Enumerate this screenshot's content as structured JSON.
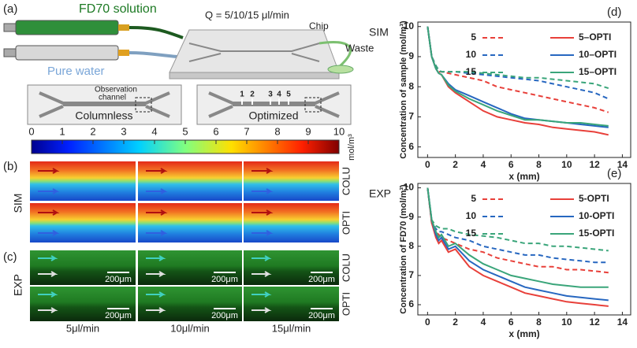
{
  "panel_a": {
    "label": "(a)",
    "syringe_1": "FD70 solution",
    "syringe_2": "Pure water",
    "flow": "Q = 5/10/15 μl/min",
    "chip": "Chip",
    "waste": "Waste",
    "observation": [
      "Observation",
      "channel"
    ],
    "columnless": "Columnless",
    "optimized": "Optimized",
    "column_numbers": [
      "1",
      "2",
      "3",
      "4",
      "5"
    ]
  },
  "panel_b": {
    "label": "(b)",
    "colorbar_ticks": [
      "0",
      "1",
      "2",
      "3",
      "4",
      "5",
      "6",
      "7",
      "8",
      "9",
      "10"
    ],
    "colorbar_unit": "mol/m³",
    "side_label": "SIM",
    "rows": [
      "COLU",
      "OPTI"
    ]
  },
  "panel_c": {
    "label": "(c)",
    "side_label": "EXP",
    "rows": [
      "COLU",
      "OPTI"
    ],
    "scale_bar": "200μm",
    "columns": [
      "5μl/min",
      "10μl/min",
      "15μl/min"
    ]
  },
  "chart_data": [
    {
      "type": "line",
      "panel": "(d)",
      "annotation": "SIM",
      "x_label": "x (mm)",
      "y_label": "Concentration of sample (mol/m³)",
      "xlim": [
        -0.7,
        14.6
      ],
      "xticks": [
        0,
        2,
        4,
        6,
        8,
        10,
        12,
        14
      ],
      "ylim": [
        5.65,
        10.15
      ],
      "yticks": [
        6,
        7,
        8,
        9,
        10
      ],
      "x": [
        0,
        0.3,
        0.6,
        0.8,
        1,
        1.5,
        2,
        3,
        4,
        5,
        6,
        7,
        8,
        9,
        10,
        11,
        12,
        13
      ],
      "series": [
        {
          "name": "5",
          "color": "#e8403a",
          "line_style": "dashed",
          "values": [
            10,
            9.0,
            8.7,
            8.5,
            8.5,
            8.45,
            8.4,
            8.3,
            8.2,
            8.0,
            7.9,
            7.8,
            7.7,
            7.6,
            7.5,
            7.4,
            7.3,
            7.15
          ]
        },
        {
          "name": "10",
          "color": "#2767c0",
          "line_style": "dashed",
          "values": [
            10,
            9.0,
            8.7,
            8.55,
            8.5,
            8.5,
            8.5,
            8.45,
            8.4,
            8.35,
            8.3,
            8.25,
            8.2,
            8.1,
            8.0,
            7.9,
            7.8,
            7.6
          ]
        },
        {
          "name": "15",
          "color": "#3aa57a",
          "line_style": "dashed",
          "values": [
            10,
            9.0,
            8.7,
            8.55,
            8.5,
            8.5,
            8.5,
            8.5,
            8.45,
            8.4,
            8.35,
            8.3,
            8.3,
            8.25,
            8.2,
            8.15,
            8.1,
            7.95
          ]
        },
        {
          "name": "5–OPTI",
          "color": "#e8403a",
          "line_style": "solid",
          "values": [
            10,
            9.0,
            8.6,
            8.45,
            8.4,
            8.0,
            7.8,
            7.5,
            7.2,
            7.0,
            6.9,
            6.8,
            6.75,
            6.65,
            6.6,
            6.55,
            6.5,
            6.4
          ]
        },
        {
          "name": "10–OPTI",
          "color": "#2767c0",
          "line_style": "solid",
          "values": [
            10,
            9.0,
            8.6,
            8.45,
            8.4,
            8.1,
            7.9,
            7.7,
            7.5,
            7.3,
            7.1,
            6.95,
            6.9,
            6.85,
            6.8,
            6.75,
            6.7,
            6.65
          ]
        },
        {
          "name": "15–OPTI",
          "color": "#3aa57a",
          "line_style": "solid",
          "values": [
            10,
            9.0,
            8.6,
            8.45,
            8.4,
            8.05,
            7.85,
            7.6,
            7.4,
            7.2,
            7.05,
            6.9,
            6.9,
            6.85,
            6.8,
            6.8,
            6.75,
            6.7
          ]
        }
      ]
    },
    {
      "type": "line",
      "panel": "(e)",
      "annotation": "EXP",
      "x_label": "x (mm)",
      "y_label": "Concentration of FD70 (mol/m³)",
      "xlim": [
        -0.7,
        14.6
      ],
      "xticks": [
        0,
        2,
        4,
        6,
        8,
        10,
        12,
        14
      ],
      "ylim": [
        5.65,
        10.15
      ],
      "yticks": [
        6,
        7,
        8,
        9,
        10
      ],
      "x": [
        0,
        0.3,
        0.6,
        0.8,
        1,
        1.5,
        2,
        3,
        4,
        5,
        6,
        7,
        8,
        9,
        10,
        11,
        12,
        13
      ],
      "series": [
        {
          "name": "5",
          "color": "#e8403a",
          "line_style": "dashed",
          "values": [
            10,
            8.8,
            8.5,
            8.4,
            8.3,
            8.2,
            8.1,
            7.9,
            7.8,
            7.6,
            7.5,
            7.4,
            7.3,
            7.3,
            7.2,
            7.2,
            7.15,
            7.1
          ]
        },
        {
          "name": "10",
          "color": "#2767c0",
          "line_style": "dashed",
          "values": [
            10,
            8.8,
            8.6,
            8.5,
            8.5,
            8.4,
            8.3,
            8.2,
            8.0,
            7.9,
            7.8,
            7.7,
            7.7,
            7.6,
            7.55,
            7.5,
            7.45,
            7.45
          ]
        },
        {
          "name": "15",
          "color": "#3aa57a",
          "line_style": "dashed",
          "values": [
            10,
            8.9,
            8.7,
            8.65,
            8.6,
            8.6,
            8.5,
            8.4,
            8.35,
            8.3,
            8.2,
            8.1,
            8.1,
            8.0,
            8.0,
            7.95,
            7.9,
            7.85
          ]
        },
        {
          "name": "5-OPTI",
          "color": "#e8403a",
          "line_style": "solid",
          "values": [
            10,
            8.8,
            8.3,
            8.1,
            8.2,
            7.8,
            7.9,
            7.3,
            7.0,
            6.8,
            6.6,
            6.4,
            6.3,
            6.2,
            6.1,
            6.05,
            6.0,
            5.95
          ]
        },
        {
          "name": "10-OPTI",
          "color": "#2767c0",
          "line_style": "solid",
          "values": [
            10,
            8.9,
            8.4,
            8.2,
            8.3,
            7.9,
            8.0,
            7.5,
            7.2,
            7.0,
            6.8,
            6.6,
            6.5,
            6.4,
            6.3,
            6.25,
            6.2,
            6.15
          ]
        },
        {
          "name": "15-OPTI",
          "color": "#3aa57a",
          "line_style": "solid",
          "values": [
            10,
            8.9,
            8.5,
            8.3,
            8.4,
            8.0,
            8.1,
            7.7,
            7.4,
            7.2,
            7.0,
            6.9,
            6.8,
            6.7,
            6.65,
            6.6,
            6.6,
            6.6
          ]
        }
      ]
    }
  ]
}
